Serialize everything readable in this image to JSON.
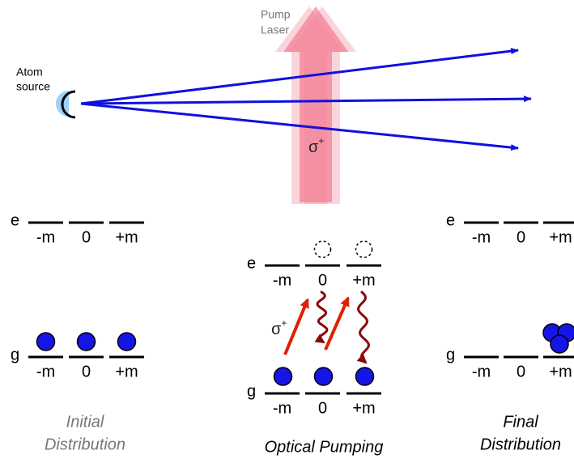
{
  "beam": {
    "source_label": [
      "Atom",
      "source"
    ],
    "pump_label": [
      "Pump",
      "Laser"
    ],
    "polarization": {
      "symbol": "σ",
      "superscript": "+"
    }
  },
  "panels": [
    {
      "caption": [
        "Initial",
        "Distribution"
      ],
      "excited": {
        "label": "e",
        "sublevels": [
          "-m",
          "0",
          "+m"
        ]
      },
      "ground": {
        "label": "g",
        "sublevels": [
          "-m",
          "0",
          "+m"
        ]
      }
    },
    {
      "caption": [
        "Optical Pumping"
      ],
      "polarization": {
        "symbol": "σ",
        "superscript": "+"
      },
      "excited": {
        "label": "e",
        "sublevels": [
          "-m",
          "0",
          "+m"
        ]
      },
      "ground": {
        "label": "g",
        "sublevels": [
          "-m",
          "0",
          "+m"
        ]
      }
    },
    {
      "caption": [
        "Final",
        "Distribution"
      ],
      "excited": {
        "label": "e",
        "sublevels": [
          "-m",
          "0",
          "+m"
        ]
      },
      "ground": {
        "label": "g",
        "sublevels": [
          "-m",
          "0",
          "+m"
        ]
      }
    }
  ]
}
